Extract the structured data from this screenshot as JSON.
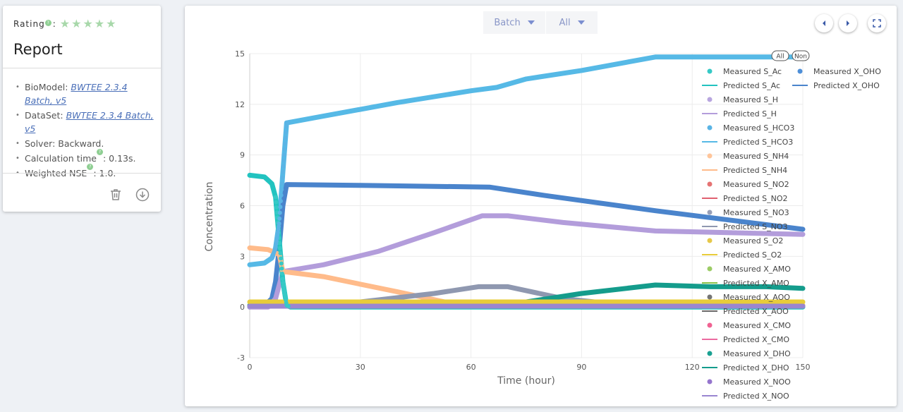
{
  "report": {
    "rating_label": "Rating",
    "rating_colon": ":",
    "stars": 5,
    "title": "Report",
    "biomodel_label": "BioModel: ",
    "biomodel_value": "BWTEE 2.3.4 Batch, v5",
    "dataset_label": "DataSet: ",
    "dataset_value": "BWTEE 2.3.4 Batch, v5",
    "solver": "Solver: Backward.",
    "calc_label": "Calculation time",
    "calc_value": ": 0.13s.",
    "nse_label": "Weighted NSE",
    "nse_value": ": 1.0."
  },
  "controls": {
    "batch_label": "Batch",
    "all_label": "All"
  },
  "colors": {
    "accent": "#4a6fb8",
    "star": "#a8d8aa"
  },
  "chart_data": {
    "type": "line",
    "xlabel": "Time (hour)",
    "ylabel": "Concentration",
    "xlim": [
      0,
      150
    ],
    "ylim": [
      -3,
      15
    ],
    "xticks": [
      0,
      30,
      60,
      90,
      120,
      150
    ],
    "yticks": [
      -3,
      0,
      3,
      6,
      9,
      12,
      15
    ],
    "grid": true,
    "legend_position": "right",
    "legend_tags": [
      "All",
      "Non"
    ],
    "legend": [
      {
        "label": "Measured S_Ac",
        "kind": "marker",
        "color": "#36c9c6"
      },
      {
        "label": "Predicted S_Ac",
        "kind": "line",
        "color": "#22c3c0"
      },
      {
        "label": "Measured S_H",
        "kind": "marker",
        "color": "#b8a6df"
      },
      {
        "label": "Predicted S_H",
        "kind": "line",
        "color": "#b39ddb"
      },
      {
        "label": "Measured S_HCO3",
        "kind": "marker",
        "color": "#5ab4e5"
      },
      {
        "label": "Predicted S_HCO3",
        "kind": "line",
        "color": "#56b9e6"
      },
      {
        "label": "Measured S_NH4",
        "kind": "marker",
        "color": "#ffc59a"
      },
      {
        "label": "Predicted S_NH4",
        "kind": "line",
        "color": "#ffbb8a"
      },
      {
        "label": "Measured S_NO2",
        "kind": "marker",
        "color": "#e57373"
      },
      {
        "label": "Predicted S_NO2",
        "kind": "line",
        "color": "#e06070"
      },
      {
        "label": "Measured S_NO3",
        "kind": "marker",
        "color": "#98a0b8"
      },
      {
        "label": "Predicted S_NO3",
        "kind": "line",
        "color": "#8f98b0"
      },
      {
        "label": "Measured S_O2",
        "kind": "marker",
        "color": "#e6c84a"
      },
      {
        "label": "Predicted S_O2",
        "kind": "line",
        "color": "#e8cc3a"
      },
      {
        "label": "Measured X_AMO",
        "kind": "marker",
        "color": "#9ccc65"
      },
      {
        "label": "Predicted X_AMO",
        "kind": "line",
        "color": "#8bc34a"
      },
      {
        "label": "Measured X_AOO",
        "kind": "marker",
        "color": "#757575"
      },
      {
        "label": "Predicted X_AOO",
        "kind": "line",
        "color": "#6a6a6a"
      },
      {
        "label": "Measured X_CMO",
        "kind": "marker",
        "color": "#f06292"
      },
      {
        "label": "Predicted X_CMO",
        "kind": "line",
        "color": "#ec6ba0"
      },
      {
        "label": "Measured X_DHO",
        "kind": "marker",
        "color": "#1aa192"
      },
      {
        "label": "Predicted X_DHO",
        "kind": "line",
        "color": "#149c8c"
      },
      {
        "label": "Measured X_NOO",
        "kind": "marker",
        "color": "#9575cd"
      },
      {
        "label": "Predicted X_NOO",
        "kind": "line",
        "color": "#9a86d0"
      },
      {
        "label": "Measured X_OHO",
        "kind": "marker",
        "color": "#4e8fd8"
      },
      {
        "label": "Predicted X_OHO",
        "kind": "line",
        "color": "#4a84cc"
      }
    ],
    "series": [
      {
        "name": "Predicted S_HCO3",
        "color": "#56b9e6",
        "points": [
          [
            0,
            2.5
          ],
          [
            4,
            2.6
          ],
          [
            6,
            2.9
          ],
          [
            7,
            3.5
          ],
          [
            8,
            5.0
          ],
          [
            9,
            8.0
          ],
          [
            10,
            10.9
          ],
          [
            20,
            11.3
          ],
          [
            40,
            12.1
          ],
          [
            60,
            12.8
          ],
          [
            67,
            13.0
          ],
          [
            75,
            13.5
          ],
          [
            90,
            14.0
          ],
          [
            110,
            14.8
          ],
          [
            150,
            14.8
          ]
        ]
      },
      {
        "name": "Predicted X_OHO",
        "color": "#4a84cc",
        "points": [
          [
            0,
            0
          ],
          [
            4,
            0.1
          ],
          [
            6,
            0.5
          ],
          [
            7,
            1.5
          ],
          [
            8,
            3.5
          ],
          [
            9,
            6.0
          ],
          [
            10,
            7.25
          ],
          [
            30,
            7.2
          ],
          [
            65,
            7.1
          ],
          [
            80,
            6.6
          ],
          [
            110,
            5.7
          ],
          [
            150,
            4.6
          ]
        ]
      },
      {
        "name": "Predicted S_H",
        "color": "#b39ddb",
        "points": [
          [
            0,
            0
          ],
          [
            5,
            0
          ],
          [
            7,
            0.5
          ],
          [
            9,
            2.1
          ],
          [
            20,
            2.5
          ],
          [
            35,
            3.3
          ],
          [
            50,
            4.4
          ],
          [
            63,
            5.4
          ],
          [
            70,
            5.4
          ],
          [
            85,
            5.0
          ],
          [
            110,
            4.5
          ],
          [
            150,
            4.3
          ]
        ]
      },
      {
        "name": "Predicted S_Ac",
        "color": "#22c3c0",
        "points": [
          [
            0,
            7.8
          ],
          [
            4,
            7.7
          ],
          [
            6,
            7.3
          ],
          [
            7,
            6.5
          ],
          [
            8,
            4.0
          ],
          [
            9,
            1.5
          ],
          [
            10,
            0.1
          ],
          [
            11,
            0
          ],
          [
            150,
            0
          ]
        ]
      },
      {
        "name": "Predicted S_NH4",
        "color": "#ffbb8a",
        "points": [
          [
            0,
            3.5
          ],
          [
            5,
            3.4
          ],
          [
            8,
            3.1
          ],
          [
            9,
            2.1
          ],
          [
            20,
            1.8
          ],
          [
            40,
            0.9
          ],
          [
            55,
            0.2
          ],
          [
            62,
            0.1
          ],
          [
            150,
            0.1
          ]
        ]
      },
      {
        "name": "Predicted S_NO3",
        "color": "#8f98b0",
        "points": [
          [
            0,
            0.05
          ],
          [
            30,
            0.3
          ],
          [
            50,
            0.8
          ],
          [
            62,
            1.2
          ],
          [
            70,
            1.2
          ],
          [
            85,
            0.5
          ],
          [
            100,
            0.15
          ],
          [
            150,
            0.05
          ]
        ]
      },
      {
        "name": "Predicted X_DHO",
        "color": "#149c8c",
        "points": [
          [
            0,
            0.1
          ],
          [
            60,
            0.1
          ],
          [
            75,
            0.3
          ],
          [
            90,
            0.8
          ],
          [
            110,
            1.3
          ],
          [
            125,
            1.2
          ],
          [
            140,
            1.2
          ],
          [
            150,
            1.1
          ]
        ]
      },
      {
        "name": "Predicted S_O2",
        "color": "#e8cc3a",
        "points": [
          [
            0,
            0.3
          ],
          [
            150,
            0.3
          ]
        ]
      },
      {
        "name": "Predicted X_NOO",
        "color": "#9a86d0",
        "points": [
          [
            0,
            0.05
          ],
          [
            150,
            0.05
          ]
        ]
      }
    ],
    "measured_series": [
      {
        "name": "Measured S_Ac",
        "color": "#36c9c6",
        "x_start": 7,
        "x_end": 10.5,
        "n": 30,
        "follows": "Predicted S_Ac"
      },
      {
        "name": "Measured S_HCO3",
        "color": "#5ab4e5",
        "x_start": 6,
        "x_end": 10.5,
        "n": 40,
        "follows": "Predicted S_HCO3"
      }
    ]
  }
}
